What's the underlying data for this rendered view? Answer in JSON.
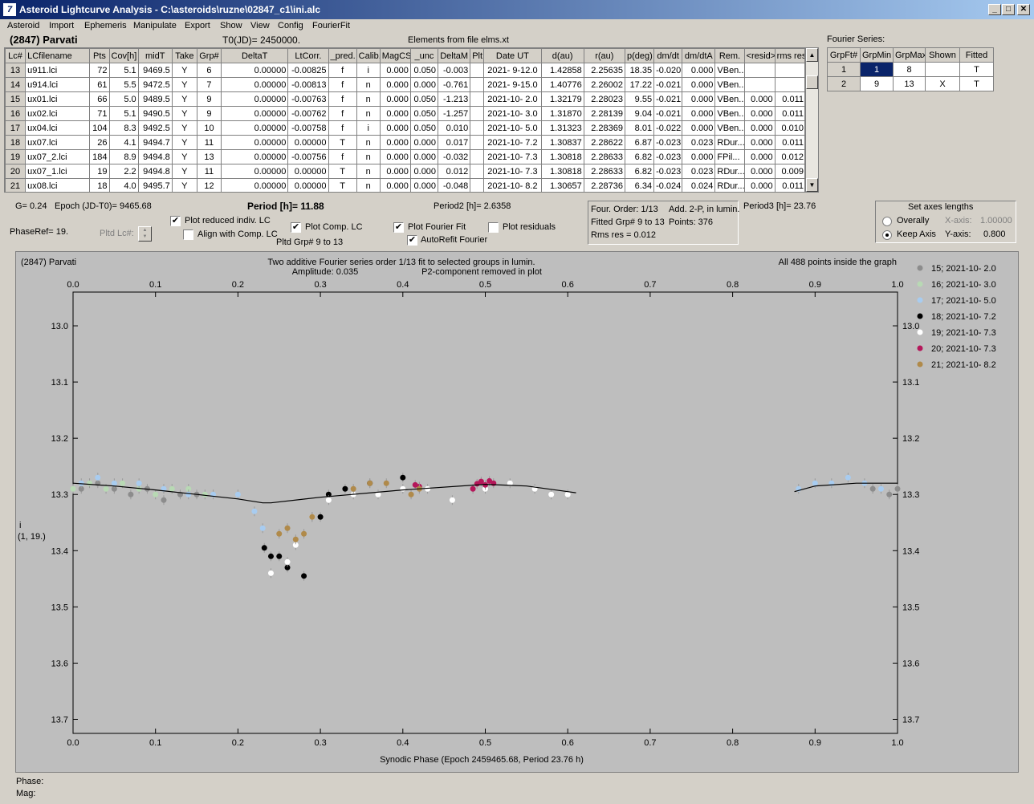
{
  "window": {
    "title": "Asteroid Lightcurve Analysis - C:\\asteroids\\ruzne\\02847_c1\\ini.alc",
    "app_icon_glyph": "7"
  },
  "menu": [
    "Asteroid",
    "Import",
    "Ephemeris",
    "Manipulate",
    "Export",
    "Show",
    "View",
    "Config",
    "FourierFit"
  ],
  "header": {
    "asteroid_name": "(2847) Parvati",
    "t0": "T0(JD)= 2450000.",
    "elements_source": "Elements from file elms.xt"
  },
  "lc_table": {
    "columns": [
      "Lc#",
      "LCfilename",
      "Pts",
      "Cov[h]",
      "midT",
      "Take",
      "Grp#",
      "DeltaT",
      "LtCorr.",
      "_pred.",
      "Calib.",
      "MagCS",
      "_unc",
      "DeltaM",
      "Plt",
      "Date UT",
      "d(au)",
      "r(au)",
      "p(deg)",
      "dm/dt",
      "dm/dtA",
      "Rem.",
      "<resid>",
      "rms res"
    ],
    "rows": [
      [
        "13",
        "u911.lci",
        "72",
        "5.1",
        "9469.5",
        "Y",
        "6",
        "0.00000",
        "-0.00825",
        "f",
        "i",
        "0.000",
        "0.050",
        "-0.003",
        "",
        "2021- 9-12.0",
        "1.42858",
        "2.25635",
        "18.35",
        "-0.020",
        "0.000",
        "VBen...",
        "",
        ""
      ],
      [
        "14",
        "u914.lci",
        "61",
        "5.5",
        "9472.5",
        "Y",
        "7",
        "0.00000",
        "-0.00813",
        "f",
        "n",
        "0.000",
        "0.000",
        "-0.761",
        "",
        "2021- 9-15.0",
        "1.40776",
        "2.26002",
        "17.22",
        "-0.021",
        "0.000",
        "VBen...",
        "",
        ""
      ],
      [
        "15",
        "ux01.lci",
        "66",
        "5.0",
        "9489.5",
        "Y",
        "9",
        "0.00000",
        "-0.00763",
        "f",
        "n",
        "0.000",
        "0.050",
        "-1.213",
        "",
        "2021-10- 2.0",
        "1.32179",
        "2.28023",
        "9.55",
        "-0.021",
        "0.000",
        "VBen...",
        "0.000",
        "0.011"
      ],
      [
        "16",
        "ux02.lci",
        "71",
        "5.1",
        "9490.5",
        "Y",
        "9",
        "0.00000",
        "-0.00762",
        "f",
        "n",
        "0.000",
        "0.050",
        "-1.257",
        "",
        "2021-10- 3.0",
        "1.31870",
        "2.28139",
        "9.04",
        "-0.021",
        "0.000",
        "VBen...",
        "0.000",
        "0.011"
      ],
      [
        "17",
        "ux04.lci",
        "104",
        "8.3",
        "9492.5",
        "Y",
        "10",
        "0.00000",
        "-0.00758",
        "f",
        "i",
        "0.000",
        "0.050",
        "0.010",
        "",
        "2021-10- 5.0",
        "1.31323",
        "2.28369",
        "8.01",
        "-0.022",
        "0.000",
        "VBen...",
        "0.000",
        "0.010"
      ],
      [
        "18",
        "ux07.lci",
        "26",
        "4.1",
        "9494.7",
        "Y",
        "11",
        "0.00000",
        "0.00000",
        "T",
        "n",
        "0.000",
        "0.000",
        "0.017",
        "",
        "2021-10- 7.2",
        "1.30837",
        "2.28622",
        "6.87",
        "-0.023",
        "0.023",
        "RDur...",
        "0.000",
        "0.011"
      ],
      [
        "19",
        "ux07_2.lci",
        "184",
        "8.9",
        "9494.8",
        "Y",
        "13",
        "0.00000",
        "-0.00756",
        "f",
        "n",
        "0.000",
        "0.000",
        "-0.032",
        "",
        "2021-10- 7.3",
        "1.30818",
        "2.28633",
        "6.82",
        "-0.023",
        "0.000",
        "FPil...",
        "0.000",
        "0.012"
      ],
      [
        "20",
        "ux07_1.lci",
        "19",
        "2.2",
        "9494.8",
        "Y",
        "11",
        "0.00000",
        "0.00000",
        "T",
        "n",
        "0.000",
        "0.000",
        "0.012",
        "",
        "2021-10- 7.3",
        "1.30818",
        "2.28633",
        "6.82",
        "-0.023",
        "0.023",
        "RDur...",
        "0.000",
        "0.009"
      ],
      [
        "21",
        "ux08.lci",
        "18",
        "4.0",
        "9495.7",
        "Y",
        "12",
        "0.00000",
        "0.00000",
        "T",
        "n",
        "0.000",
        "0.000",
        "-0.048",
        "",
        "2021-10- 8.2",
        "1.30657",
        "2.28736",
        "6.34",
        "-0.024",
        "0.024",
        "RDur...",
        "0.000",
        "0.011"
      ]
    ]
  },
  "fourier": {
    "label": "Fourier Series:",
    "columns": [
      "GrpFt#",
      "GrpMin",
      "GrpMax",
      "Shown",
      "Fitted"
    ],
    "rows": [
      [
        "1",
        "1",
        "8",
        "",
        "T"
      ],
      [
        "2",
        "9",
        "13",
        "X",
        "T"
      ]
    ]
  },
  "info": {
    "g": "G= 0.24",
    "epoch": "Epoch (JD-T0)= 9465.68",
    "period": "Period [h]= 11.88",
    "period2": "Period2 [h]= 2.6358",
    "period3": "Period3 [h]= 23.76",
    "phase_ref": "PhaseRef= 19.",
    "pltd_lc": "Pltd Lc#:",
    "pltd_grp": "Pltd Grp#  9  to  13"
  },
  "checkboxes": {
    "plot_reduced": {
      "label": "Plot reduced indiv. LC",
      "checked": true
    },
    "align_comp": {
      "label": "Align with Comp. LC",
      "checked": false
    },
    "plot_comp": {
      "label": "Plot Comp. LC",
      "checked": true
    },
    "plot_fourier": {
      "label": "Plot Fourier Fit",
      "checked": true
    },
    "autorefit": {
      "label": "AutoRefit Fourier",
      "checked": true
    },
    "plot_residuals": {
      "label": "Plot residuals",
      "checked": false
    }
  },
  "fit_box": {
    "line1_a": "Four. Order:  1/13",
    "line1_b": "Add. 2-P, in lumin.",
    "line2_a": "Fitted Grp# 9 to 13",
    "line2_b": "Points: 376",
    "line3": "Rms res     = 0.012"
  },
  "axes_box": {
    "title": "Set axes lengths",
    "overally": "Overally",
    "keep_axis": "Keep Axis",
    "selected": "keep_axis",
    "x_label": "X-axis:",
    "x_value": "1.00000",
    "y_label": "Y-axis:",
    "y_value": "0.800"
  },
  "plot": {
    "name": "(2847) Parvati",
    "title1": "Two additive Fourier series order 1/13 fit to selected groups in lumin.",
    "title2_a": "Amplitude: 0.035",
    "title2_b": "P2-component removed in plot",
    "points_note": "All 488 points inside the graph",
    "y_side_label_1": "i",
    "y_side_label_2": "(1, 19.)",
    "xlabel": "Synodic Phase (Epoch 2459465.68, Period 23.76 h)"
  },
  "status": {
    "phase": "Phase:",
    "mag": "Mag:"
  },
  "chart_data": {
    "type": "scatter",
    "xlabel": "Synodic Phase (Epoch 2459465.68, Period 23.76 h)",
    "ylabel": "",
    "xlim": [
      0.0,
      1.0
    ],
    "ylim": [
      13.725,
      12.94
    ],
    "y_inverted": true,
    "xticks": [
      "0.0",
      "0.1",
      "0.2",
      "0.3",
      "0.4",
      "0.5",
      "0.6",
      "0.7",
      "0.8",
      "0.9",
      "1.0"
    ],
    "yticks": [
      "13.0",
      "13.1",
      "13.2",
      "13.3",
      "13.4",
      "13.5",
      "13.6",
      "13.7"
    ],
    "colors": {
      "plot_bg": "#bebebe",
      "fit_line": "#000000"
    },
    "series": [
      {
        "name": "15; 2021-10- 2.0",
        "color": "#8c8c8c",
        "points": [
          [
            0.01,
            13.29
          ],
          [
            0.03,
            13.28
          ],
          [
            0.05,
            13.29
          ],
          [
            0.07,
            13.3
          ],
          [
            0.09,
            13.29
          ],
          [
            0.11,
            13.31
          ],
          [
            0.13,
            13.3
          ],
          [
            0.15,
            13.3
          ],
          [
            0.97,
            13.29
          ],
          [
            0.99,
            13.3
          ],
          [
            1.0,
            13.29
          ]
        ]
      },
      {
        "name": "16; 2021-10- 3.0",
        "color": "#b8d9b4",
        "points": [
          [
            0.0,
            13.29
          ],
          [
            0.02,
            13.28
          ],
          [
            0.04,
            13.29
          ],
          [
            0.06,
            13.28
          ],
          [
            0.08,
            13.29
          ],
          [
            0.1,
            13.3
          ],
          [
            0.12,
            13.29
          ],
          [
            0.14,
            13.29
          ],
          [
            0.16,
            13.3
          ]
        ]
      },
      {
        "name": "17; 2021-10- 5.0",
        "color": "#a8ccf0",
        "points": [
          [
            0.01,
            13.28
          ],
          [
            0.03,
            13.27
          ],
          [
            0.05,
            13.28
          ],
          [
            0.08,
            13.28
          ],
          [
            0.11,
            13.29
          ],
          [
            0.14,
            13.3
          ],
          [
            0.17,
            13.3
          ],
          [
            0.2,
            13.3
          ],
          [
            0.22,
            13.33
          ],
          [
            0.23,
            13.36
          ],
          [
            0.88,
            13.29
          ],
          [
            0.9,
            13.28
          ],
          [
            0.92,
            13.28
          ],
          [
            0.94,
            13.27
          ],
          [
            0.96,
            13.28
          ],
          [
            0.98,
            13.29
          ]
        ]
      },
      {
        "name": "18; 2021-10- 7.2",
        "color": "#000000",
        "points": [
          [
            0.232,
            13.395
          ],
          [
            0.24,
            13.41
          ],
          [
            0.25,
            13.41
          ],
          [
            0.26,
            13.43
          ],
          [
            0.28,
            13.445
          ],
          [
            0.3,
            13.34
          ],
          [
            0.31,
            13.3
          ],
          [
            0.33,
            13.29
          ],
          [
            0.36,
            13.28
          ],
          [
            0.4,
            13.27
          ]
        ]
      },
      {
        "name": "19; 2021-10- 7.3",
        "color": "#ffffff",
        "points": [
          [
            0.24,
            13.44
          ],
          [
            0.26,
            13.42
          ],
          [
            0.27,
            13.39
          ],
          [
            0.29,
            13.34
          ],
          [
            0.31,
            13.31
          ],
          [
            0.34,
            13.3
          ],
          [
            0.37,
            13.3
          ],
          [
            0.4,
            13.29
          ],
          [
            0.43,
            13.29
          ],
          [
            0.46,
            13.31
          ],
          [
            0.5,
            13.29
          ],
          [
            0.53,
            13.28
          ],
          [
            0.56,
            13.29
          ],
          [
            0.58,
            13.3
          ],
          [
            0.6,
            13.3
          ]
        ]
      },
      {
        "name": "20; 2021-10- 7.3",
        "color": "#b5175a",
        "points": [
          [
            0.415,
            13.283
          ],
          [
            0.42,
            13.286
          ],
          [
            0.485,
            13.29
          ],
          [
            0.49,
            13.281
          ],
          [
            0.495,
            13.277
          ],
          [
            0.5,
            13.283
          ],
          [
            0.505,
            13.276
          ],
          [
            0.51,
            13.28
          ]
        ]
      },
      {
        "name": "21; 2021-10- 8.2",
        "color": "#b08a4a",
        "points": [
          [
            0.25,
            13.37
          ],
          [
            0.26,
            13.36
          ],
          [
            0.27,
            13.38
          ],
          [
            0.28,
            13.37
          ],
          [
            0.29,
            13.34
          ],
          [
            0.34,
            13.29
          ],
          [
            0.36,
            13.28
          ],
          [
            0.38,
            13.28
          ],
          [
            0.41,
            13.3
          ],
          [
            0.42,
            13.29
          ]
        ]
      }
    ],
    "fit_line": [
      [
        0.0,
        13.28
      ],
      [
        0.05,
        13.285
      ],
      [
        0.1,
        13.292
      ],
      [
        0.15,
        13.3
      ],
      [
        0.2,
        13.308
      ],
      [
        0.23,
        13.315
      ],
      [
        0.24,
        13.315
      ],
      [
        0.3,
        13.305
      ],
      [
        0.4,
        13.292
      ],
      [
        0.5,
        13.282
      ],
      [
        0.55,
        13.285
      ],
      [
        0.6,
        13.295
      ],
      [
        0.61,
        13.297
      ],
      [
        0.875,
        13.295
      ],
      [
        0.9,
        13.285
      ],
      [
        0.95,
        13.28
      ],
      [
        1.0,
        13.28
      ]
    ]
  }
}
